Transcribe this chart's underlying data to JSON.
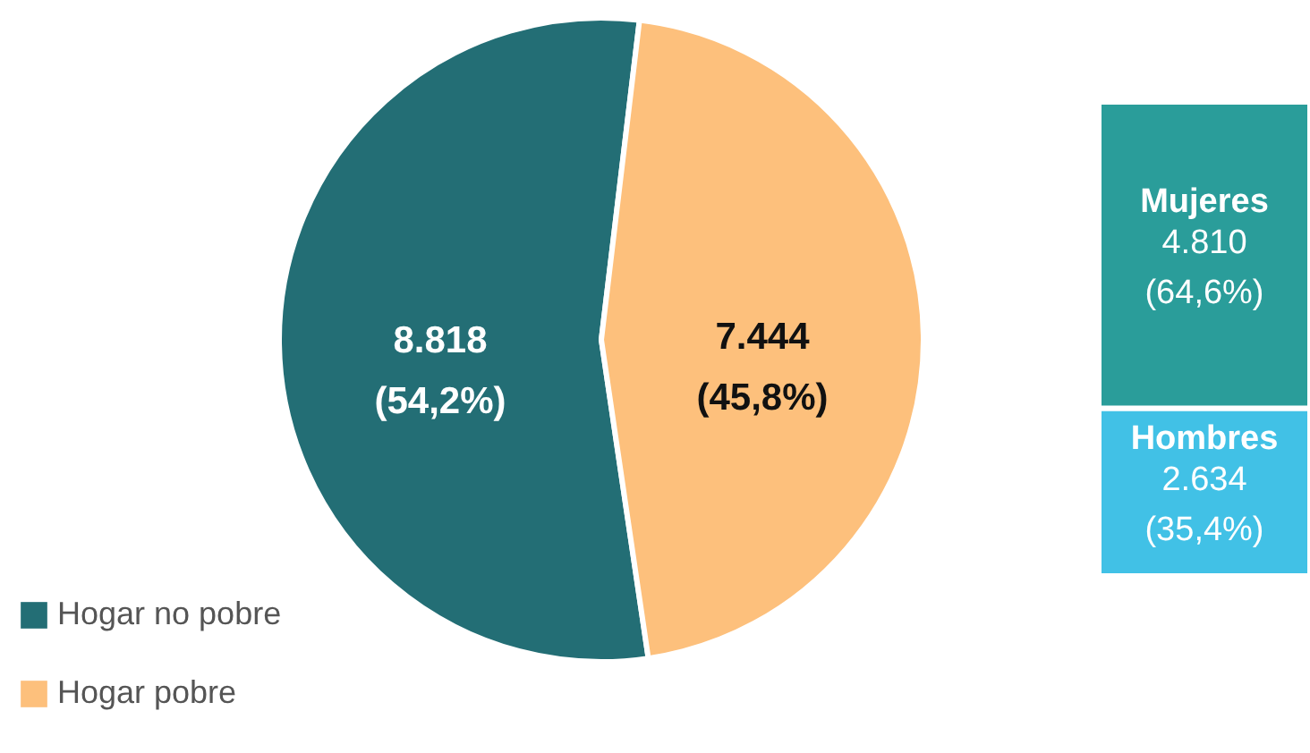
{
  "chart_data": [
    {
      "type": "pie",
      "categories": [
        "Hogar no pobre",
        "Hogar pobre"
      ],
      "values": [
        8818,
        7444
      ],
      "colors": [
        "#236e75",
        "#fdc07c"
      ],
      "value_labels": [
        "8.818\n(54,2%)",
        "7.444\n(45,8%)"
      ],
      "legend": "bottom left"
    },
    {
      "type": "bar",
      "stacked": true,
      "categories": [
        null
      ],
      "tick_labels": false,
      "series": [
        {
          "name": "Hombres",
          "color": "#41c1e6",
          "values": [
            2634
          ],
          "value_labels": [
            "2.634\n(35,4%)"
          ]
        },
        {
          "name": "Mujeres",
          "color": "#2a9d9a",
          "values": [
            4810
          ],
          "value_labels": [
            "4.810\n(64,6%)"
          ]
        }
      ]
    }
  ]
}
